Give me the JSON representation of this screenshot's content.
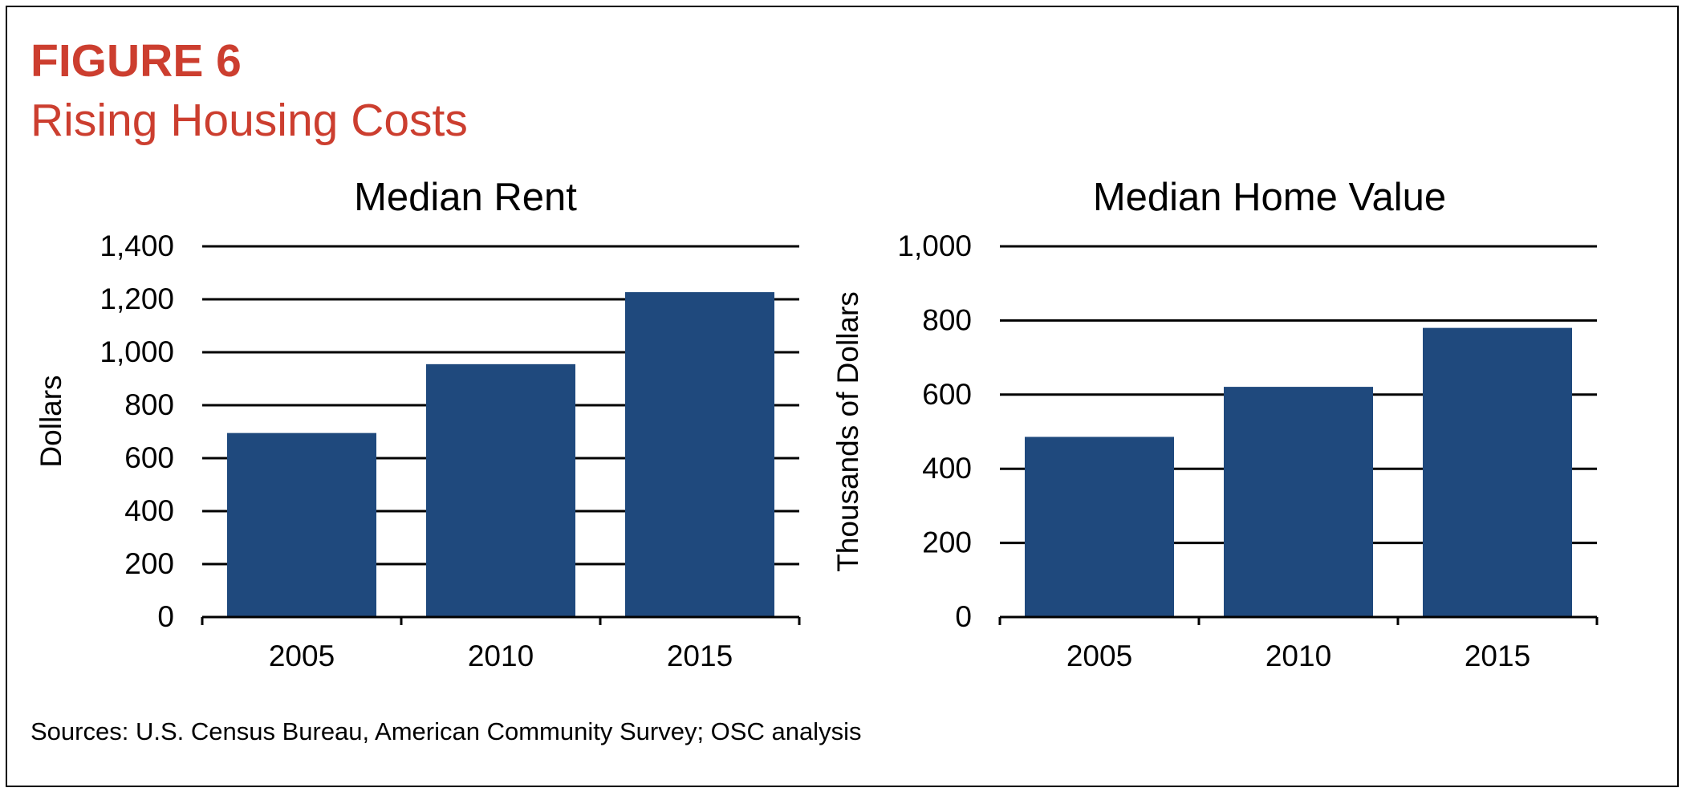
{
  "figure": {
    "label": "FIGURE 6",
    "title": "Rising Housing Costs",
    "source": "Sources: U.S. Census Bureau, American Community Survey; OSC analysis"
  },
  "colors": {
    "title": "#cc3e2f",
    "bar": "#1f497d",
    "grid": "#000000"
  },
  "chart_data": [
    {
      "type": "bar",
      "title": "Median Rent",
      "xlabel": "",
      "ylabel": "Dollars",
      "categories": [
        "2005",
        "2010",
        "2015"
      ],
      "values": [
        695,
        955,
        1227
      ],
      "ylim": [
        0,
        1400
      ],
      "yticks": [
        0,
        200,
        400,
        600,
        800,
        1000,
        1200,
        1400
      ],
      "ytick_labels": [
        "0",
        "200",
        "400",
        "600",
        "800",
        "1,000",
        "1,200",
        "1,400"
      ],
      "grid": true,
      "legend": "none"
    },
    {
      "type": "bar",
      "title": "Median Home Value",
      "xlabel": "",
      "ylabel": "Thousands of Dollars",
      "categories": [
        "2005",
        "2010",
        "2015"
      ],
      "values": [
        486,
        621,
        780
      ],
      "ylim": [
        0,
        1000
      ],
      "yticks": [
        0,
        200,
        400,
        600,
        800,
        1000
      ],
      "ytick_labels": [
        "0",
        "200",
        "400",
        "600",
        "800",
        "1,000"
      ],
      "grid": true,
      "legend": "none"
    }
  ]
}
